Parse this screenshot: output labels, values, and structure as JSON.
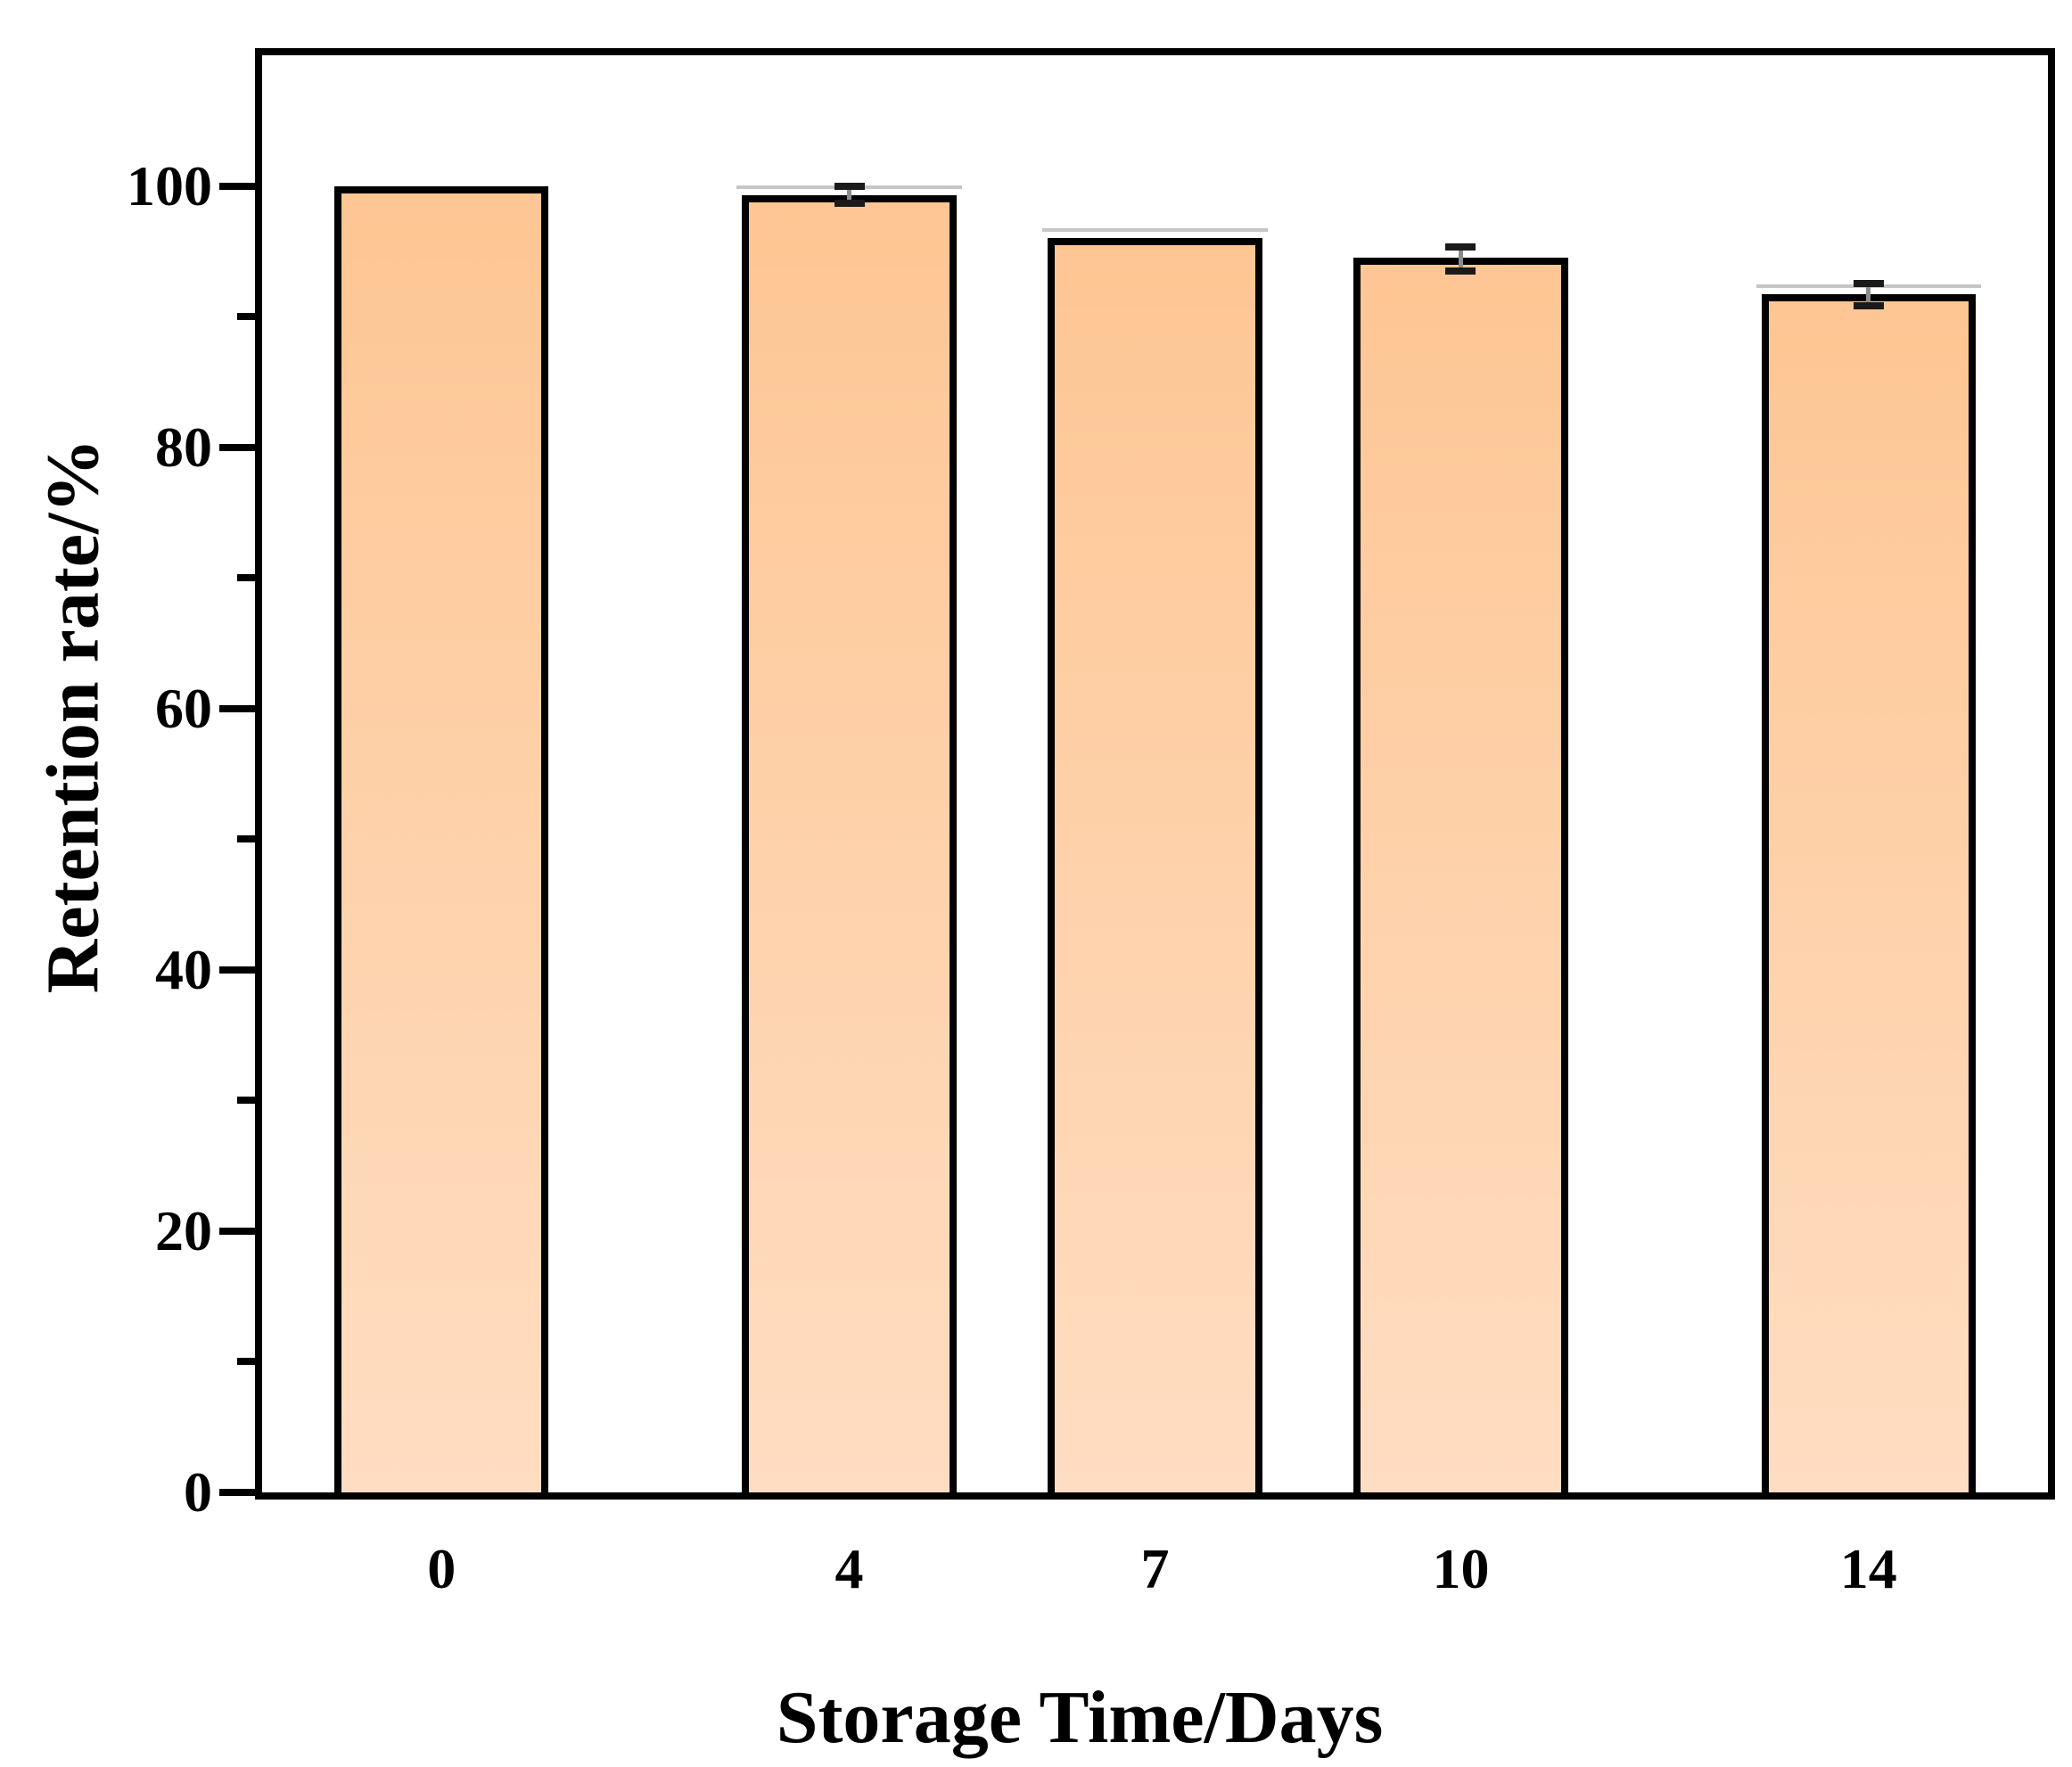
{
  "chart_data": {
    "type": "bar",
    "title": "",
    "xlabel": "Storage Time/Days",
    "ylabel": "Retention rate/%",
    "categories": [
      0,
      4,
      7,
      10,
      14
    ],
    "values": [
      100,
      99.3,
      96.0,
      94.5,
      91.7
    ],
    "errors": [
      null,
      {
        "plus": 0.7,
        "minus": 0.6
      },
      null,
      {
        "plus": 0.8,
        "minus": 1.0
      },
      {
        "plus": 0.8,
        "minus": 0.9
      }
    ],
    "halo": [
      false,
      true,
      true,
      false,
      true
    ],
    "x_axis": {
      "type": "linear",
      "min": -1.76,
      "max": 15.76,
      "tick_labels": [
        "0",
        "4",
        "7",
        "10",
        "14"
      ]
    },
    "y_axis": {
      "min": 0,
      "max": 110,
      "major_ticks": [
        0,
        20,
        40,
        60,
        80,
        100
      ],
      "major_tick_labels": [
        "0",
        "20",
        "40",
        "60",
        "80",
        "100"
      ],
      "minor_ticks": [
        10,
        30,
        50,
        70,
        90
      ]
    },
    "bar_style": {
      "width_days": 2.1,
      "fill_top": "#fdc693",
      "fill_bottom": "#ffddc2",
      "border_color": "#000000",
      "error_stem_color": "#8c8c8c",
      "error_cap_color": "#1a1a1a"
    },
    "grid": false,
    "legend": null
  }
}
